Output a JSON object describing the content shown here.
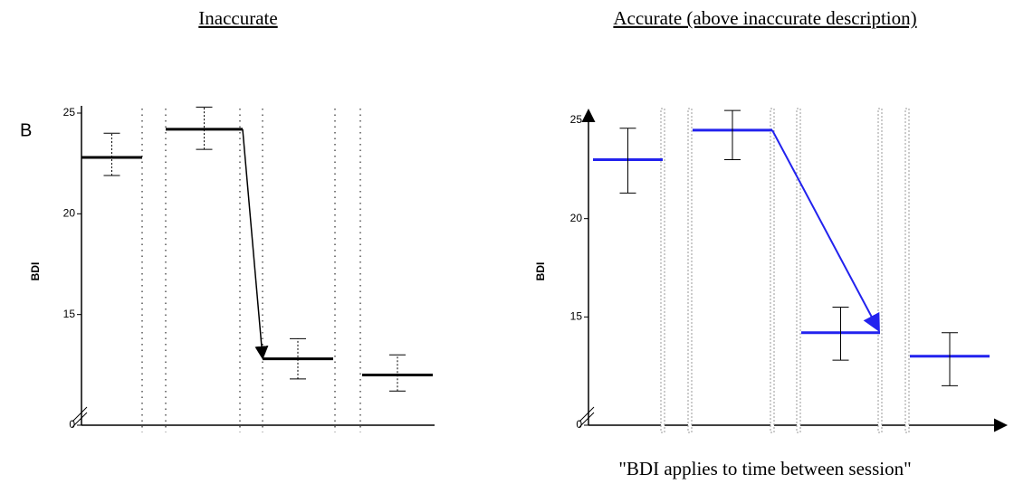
{
  "chart_data": [
    {
      "type": "errorbar",
      "headline": "Inaccurate",
      "panel_label": "B",
      "ylabel": "BDI",
      "values": [
        22.8,
        24.2,
        12.8,
        12.0
      ],
      "err_low": [
        21.9,
        23.2,
        11.8,
        11.2
      ],
      "err_high": [
        24.0,
        25.3,
        13.8,
        13.0
      ],
      "color": "#000000",
      "ylim": [
        0,
        25
      ],
      "yticks": [
        0,
        15,
        20,
        25
      ],
      "y_break": 10
    },
    {
      "type": "errorbar",
      "headline": "Accurate (above inaccurate description)",
      "ylabel": "BDI",
      "caption": "\"BDI applies to time between session\"",
      "values": [
        23.0,
        24.5,
        14.2,
        13.0
      ],
      "err_low": [
        21.3,
        23.0,
        12.8,
        11.5
      ],
      "err_high": [
        24.6,
        25.5,
        15.5,
        14.2
      ],
      "color": "#2222ee",
      "ylim": [
        0,
        25
      ],
      "yticks": [
        0,
        15,
        20,
        25
      ],
      "y_break": 10
    }
  ]
}
